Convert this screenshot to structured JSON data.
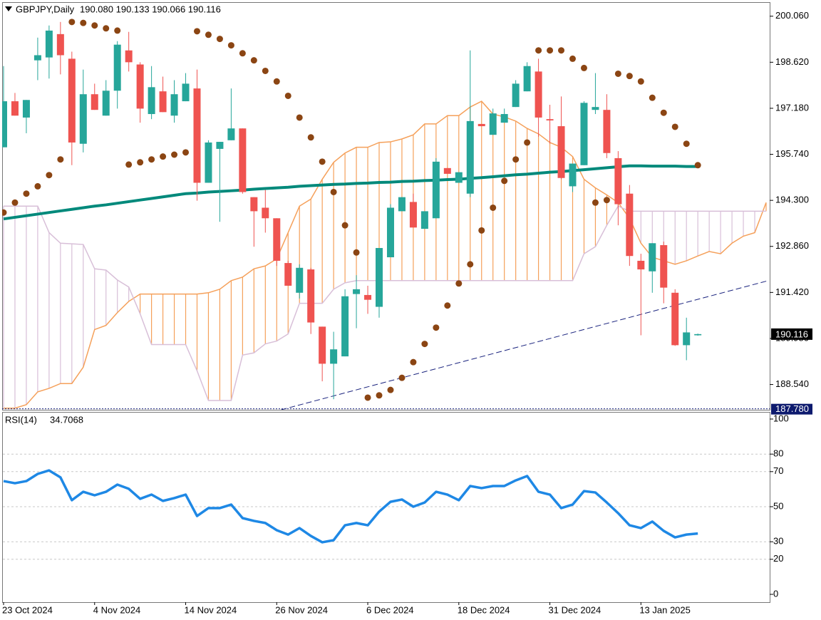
{
  "header": {
    "symbol": "GBPJPY,Daily",
    "ohlc": "190.080 190.133 190.066 190.116"
  },
  "chart_data": [
    {
      "type": "candlestick",
      "categories": [
        "23 Oct 2024",
        null,
        null,
        null,
        null,
        null,
        null,
        null,
        "4 Nov 2024",
        null,
        null,
        null,
        null,
        null,
        null,
        null,
        "14 Nov 2024",
        null,
        null,
        null,
        null,
        null,
        null,
        null,
        "26 Nov 2024",
        null,
        null,
        null,
        null,
        null,
        null,
        null,
        "6 Dec 2024",
        null,
        null,
        null,
        null,
        null,
        null,
        null,
        "18 Dec 2024",
        null,
        null,
        null,
        null,
        null,
        null,
        null,
        "31 Dec 2024",
        null,
        null,
        null,
        null,
        null,
        null,
        null,
        "13 Jan 2025",
        null,
        null,
        null,
        null,
        null
      ],
      "open": [
        195.96,
        197.4,
        196.89,
        198.68,
        198.77,
        199.5,
        198.73,
        196.07,
        197.62,
        196.95,
        197.73,
        198.99,
        198.55,
        197.0,
        197.71,
        196.95,
        197.4,
        197.8,
        194.85,
        195.91,
        196.18,
        196.55,
        194.4,
        194.07,
        193.74,
        192.34,
        191.41,
        192.14,
        190.35,
        189.19,
        189.42,
        191.37,
        191.34,
        190.97,
        192.52,
        193.96,
        194.25,
        193.41,
        193.74,
        195.31,
        194.85,
        194.51,
        196.69,
        196.35,
        196.73,
        197.22,
        197.71,
        198.33,
        196.84,
        196.62,
        194.74,
        195.4,
        197.13,
        197.13,
        195.62,
        194.51,
        192.41,
        192.08,
        192.9,
        191.41,
        189.77,
        190.08
      ],
      "high": [
        198.5,
        197.66,
        197.44,
        199.39,
        199.77,
        199.88,
        198.95,
        198.39,
        197.95,
        198.06,
        199.28,
        199.57,
        198.62,
        198.5,
        198.17,
        198.06,
        198.28,
        198.39,
        196.18,
        196.13,
        197.8,
        196.55,
        194.4,
        194.63,
        193.74,
        192.41,
        192.3,
        192.19,
        190.35,
        190.19,
        191.52,
        191.96,
        191.63,
        192.81,
        194.18,
        194.4,
        194.51,
        193.96,
        195.62,
        195.31,
        195.18,
        198.99,
        196.69,
        197.17,
        197.17,
        198.06,
        198.62,
        198.73,
        197.29,
        197.55,
        195.45,
        197.4,
        198.28,
        197.62,
        195.84,
        194.78,
        192.63,
        192.96,
        193.01,
        191.52,
        190.63,
        190.133
      ],
      "low": [
        195.96,
        196.95,
        196.4,
        198.06,
        198.11,
        198.24,
        195.4,
        195.8,
        197.13,
        196.95,
        197.17,
        198.33,
        196.73,
        196.84,
        197.06,
        196.73,
        197.4,
        194.29,
        194.85,
        193.63,
        196.18,
        194.51,
        192.85,
        193.29,
        192.25,
        191.63,
        191.23,
        190.12,
        188.64,
        188.08,
        189.42,
        190.3,
        190.75,
        190.63,
        192.52,
        193.96,
        193.45,
        193.41,
        193.74,
        195.13,
        194.85,
        194.4,
        196.62,
        196.35,
        196.73,
        197.22,
        197.71,
        196.29,
        196.07,
        194.96,
        194.56,
        195.4,
        197.0,
        195.62,
        193.52,
        192.25,
        190.08,
        191.41,
        191.08,
        189.75,
        189.3,
        190.066
      ],
      "close": [
        197.4,
        196.95,
        197.44,
        198.84,
        199.61,
        198.84,
        196.11,
        197.62,
        197.13,
        197.73,
        199.17,
        198.62,
        197.17,
        197.84,
        197.06,
        197.62,
        197.95,
        194.85,
        196.11,
        196.13,
        196.55,
        194.56,
        193.96,
        193.74,
        192.41,
        191.63,
        192.19,
        190.48,
        189.19,
        189.64,
        191.3,
        191.52,
        191.19,
        192.81,
        194.07,
        194.4,
        193.45,
        193.96,
        195.51,
        195.13,
        195.18,
        196.78,
        196.62,
        197.02,
        197.0,
        197.95,
        198.5,
        196.89,
        196.8,
        195.0,
        195.45,
        197.35,
        197.22,
        195.78,
        194.18,
        192.56,
        192.14,
        192.96,
        191.57,
        189.77,
        190.17,
        190.116
      ],
      "up_color": "#26a69a",
      "down_color": "#ef5350",
      "ylim": [
        187.75,
        200.5
      ],
      "yticks": [
        {
          "value": 188.54,
          "label": "188.540"
        },
        {
          "value": 189.98,
          "label": "189.980"
        },
        {
          "value": 191.42,
          "label": "191.420"
        },
        {
          "value": 192.86,
          "label": "192.860"
        },
        {
          "value": 194.3,
          "label": "194.300"
        },
        {
          "value": 195.74,
          "label": "195.740"
        },
        {
          "value": 197.18,
          "label": "197.180"
        },
        {
          "value": 198.62,
          "label": "198.620"
        },
        {
          "value": 200.06,
          "label": "200.060"
        }
      ],
      "sar": {
        "color": "#8b4513",
        "values": [
          193.92,
          194.23,
          194.51,
          194.74,
          195.09,
          195.58,
          199.88,
          199.85,
          199.77,
          199.68,
          199.61,
          195.42,
          195.49,
          195.58,
          195.67,
          195.73,
          195.8,
          199.59,
          199.48,
          199.35,
          199.15,
          198.9,
          198.68,
          198.35,
          198.02,
          197.57,
          196.89,
          196.27,
          195.51,
          194.56,
          193.52,
          192.67,
          188.13,
          188.2,
          188.37,
          188.75,
          189.24,
          189.81,
          190.32,
          191.01,
          191.7,
          192.3,
          193.36,
          194.07,
          194.91,
          195.58,
          196.11,
          198.99,
          198.99,
          198.99,
          198.73,
          198.44,
          194.23,
          194.31,
          198.26,
          198.19,
          198.02,
          197.51,
          197.04,
          196.6,
          196.07,
          195.4
        ]
      },
      "ma": {
        "color": "#00897b",
        "values": [
          193.72,
          193.77,
          193.82,
          193.87,
          193.92,
          193.97,
          194.02,
          194.07,
          194.12,
          194.16,
          194.21,
          194.26,
          194.31,
          194.36,
          194.41,
          194.46,
          194.51,
          194.53,
          194.56,
          194.58,
          194.6,
          194.62,
          194.65,
          194.67,
          194.69,
          194.71,
          194.74,
          194.76,
          194.78,
          194.8,
          194.81,
          194.83,
          194.84,
          194.86,
          194.87,
          194.89,
          194.9,
          194.92,
          194.93,
          194.95,
          194.96,
          194.99,
          195.01,
          195.04,
          195.07,
          195.1,
          195.12,
          195.15,
          195.18,
          195.2,
          195.23,
          195.26,
          195.29,
          195.32,
          195.35,
          195.38,
          195.38,
          195.37,
          195.37,
          195.37,
          195.36,
          195.36
        ]
      },
      "cloud": {
        "color_a": "#f5a05a",
        "color_b": "#d8bfd8",
        "span_a": [
          187.8,
          187.8,
          187.91,
          188.31,
          188.42,
          188.57,
          188.57,
          189.08,
          190.26,
          190.39,
          190.79,
          191.14,
          191.37,
          191.37,
          191.37,
          191.37,
          191.37,
          191.37,
          191.41,
          191.52,
          191.79,
          191.9,
          192.16,
          192.25,
          192.47,
          193.29,
          194.12,
          194.34,
          194.96,
          195.49,
          195.78,
          195.96,
          195.96,
          196.11,
          196.13,
          196.22,
          196.35,
          196.69,
          196.69,
          196.95,
          196.95,
          197.22,
          197.4,
          197.0,
          196.91,
          196.78,
          196.55,
          196.38,
          196.11,
          195.96,
          195.67,
          194.96,
          194.69,
          194.47,
          194.23,
          193.74,
          192.96,
          192.52,
          192.41,
          192.3,
          192.41,
          192.56,
          192.7,
          192.63,
          192.96,
          193.18,
          193.29,
          194.23
        ],
        "span_b": [
          194.12,
          194.12,
          194.12,
          194.12,
          193.29,
          192.96,
          192.94,
          192.92,
          192.16,
          192.12,
          191.81,
          191.59,
          190.75,
          189.79,
          189.79,
          189.79,
          189.79,
          188.97,
          188.04,
          188.04,
          188.04,
          189.46,
          189.53,
          189.81,
          189.9,
          190.12,
          191.08,
          191.08,
          191.08,
          191.52,
          191.72,
          191.79,
          191.79,
          191.79,
          191.79,
          191.79,
          191.79,
          191.79,
          191.79,
          191.79,
          191.79,
          191.79,
          191.79,
          191.79,
          191.79,
          191.79,
          191.79,
          191.79,
          191.79,
          191.79,
          191.79,
          192.63,
          192.85,
          193.52,
          194.12,
          193.96,
          193.96,
          193.96,
          193.96,
          193.96,
          193.96,
          193.96,
          193.96,
          193.96,
          193.96,
          193.96,
          193.96,
          193.96
        ]
      },
      "trendline": {
        "color": "#1a237e",
        "x": [
          24.4,
          67.2
        ],
        "values": [
          187.75,
          191.79
        ]
      },
      "price_line": {
        "value": 187.78,
        "label": "187.780"
      }
    },
    {
      "type": "line",
      "title": "RSI(14)",
      "values": [
        64.6,
        63.4,
        64.6,
        68.7,
        70.7,
        66.7,
        53.7,
        58.5,
        56.5,
        58.5,
        62.6,
        60.2,
        54.5,
        56.9,
        53.3,
        54.9,
        56.9,
        44.7,
        49.2,
        49.2,
        51.2,
        43.5,
        41.9,
        40.7,
        36.6,
        34.1,
        37.8,
        33.3,
        29.7,
        30.9,
        39.4,
        40.7,
        39.4,
        47.2,
        52.8,
        54.1,
        50.0,
        52.4,
        58.5,
        56.9,
        53.7,
        61.8,
        60.6,
        61.8,
        61.8,
        65.0,
        67.5,
        58.5,
        56.9,
        49.2,
        51.2,
        58.9,
        58.1,
        52.4,
        46.3,
        39.4,
        37.8,
        41.5,
        36.2,
        32.5,
        34.1,
        34.7068
      ],
      "color": "#1e88e5",
      "ylim": [
        0,
        100
      ],
      "yticks": [
        0,
        20,
        30,
        50,
        70,
        80,
        100
      ],
      "grid": true
    }
  ]
}
